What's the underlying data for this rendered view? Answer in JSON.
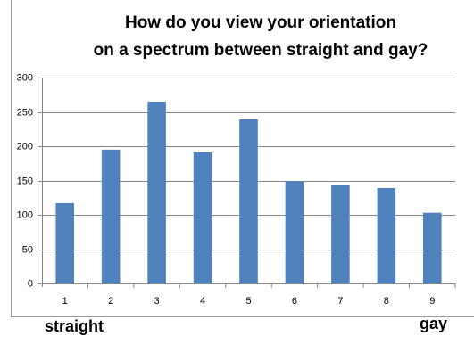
{
  "chart_data": {
    "type": "bar",
    "title": [
      "How do you view your orientation",
      "on a spectrum between straight and gay?"
    ],
    "annotations": [
      "straight",
      "gay"
    ],
    "categories": [
      "1",
      "2",
      "3",
      "4",
      "5",
      "6",
      "7",
      "8",
      "9"
    ],
    "values": [
      117,
      195,
      265,
      191,
      239,
      149,
      143,
      139,
      103
    ],
    "color": "#4f81bd",
    "ylim": [
      0,
      300
    ],
    "yticks": [
      0,
      50,
      100,
      150,
      200,
      250,
      300
    ],
    "grid": true
  }
}
